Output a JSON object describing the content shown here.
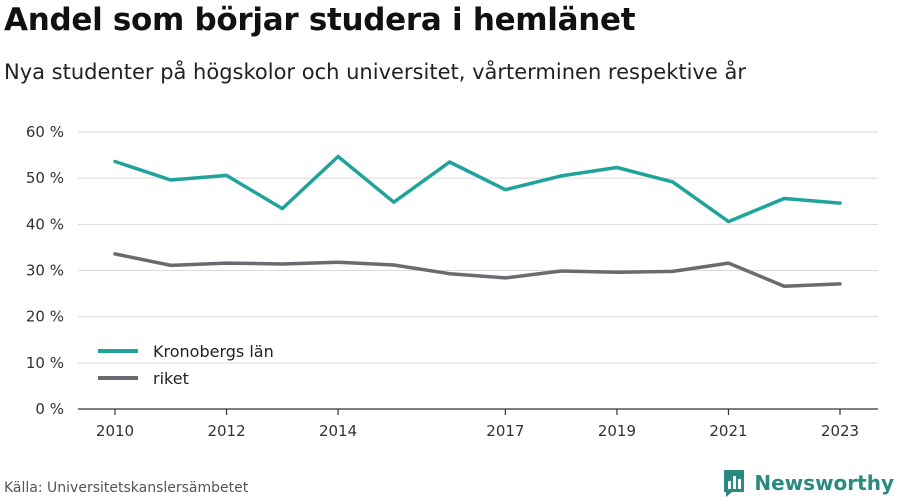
{
  "title": "Andel som börjar studera i hemlänet",
  "subtitle": "Nya studenter på högskolor och universitet, vårterminen respektive år",
  "source": "Källa: Universitetskanslersämbetet",
  "brand": {
    "name": "Newsworthy",
    "icon": "newsworthy-bar-chart-icon",
    "color": "#2a8a80"
  },
  "chart_data": {
    "type": "line",
    "x": [
      2010,
      2011,
      2012,
      2013,
      2014,
      2015,
      2016,
      2017,
      2018,
      2019,
      2020,
      2021,
      2022,
      2023
    ],
    "x_tick_values": [
      2010,
      2012,
      2014,
      2017,
      2019,
      2021,
      2023
    ],
    "x_tick_labels": [
      "2010",
      "2012",
      "2014",
      "2017",
      "2019",
      "2021",
      "2023"
    ],
    "ylim": [
      0,
      60
    ],
    "y_tick_values": [
      0,
      10,
      20,
      30,
      40,
      50,
      60
    ],
    "y_tick_labels": [
      "0 %",
      "10 %",
      "20 %",
      "30 %",
      "40 %",
      "50 %",
      "60 %"
    ],
    "grid": true,
    "legend_position": "bottom-left",
    "series": [
      {
        "name": "Kronobergs län",
        "color": "#1fa39a",
        "values": [
          53.6,
          49.6,
          50.6,
          43.4,
          54.7,
          44.8,
          53.5,
          47.5,
          50.5,
          52.3,
          49.2,
          40.6,
          45.6,
          44.6
        ]
      },
      {
        "name": "riket",
        "color": "#6b6a70",
        "values": [
          33.6,
          31.1,
          31.6,
          31.4,
          31.8,
          31.2,
          29.3,
          28.4,
          29.9,
          29.6,
          29.8,
          31.6,
          26.6,
          27.1
        ]
      }
    ]
  }
}
